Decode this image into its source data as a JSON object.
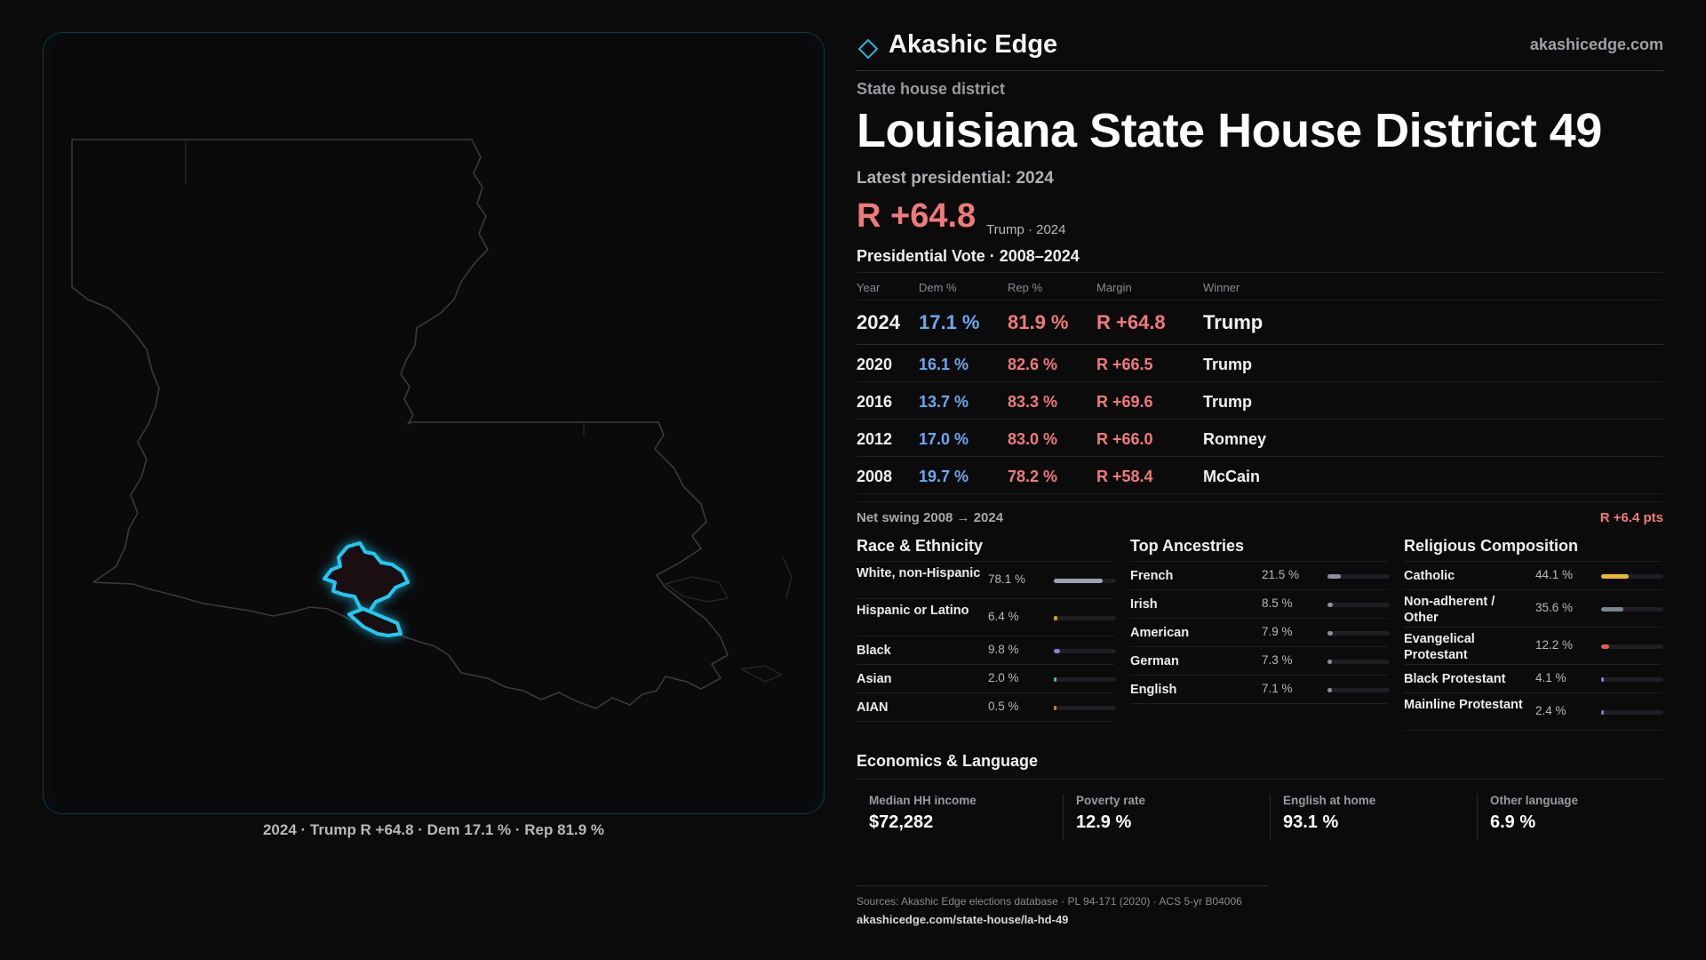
{
  "brand": {
    "name": "Akashic Edge",
    "url": "akashicedge.com"
  },
  "district": {
    "kind": "State house district",
    "title": "Louisiana State House District 49",
    "latest_label": "Latest presidential: 2024",
    "headline_margin": "R +64.8",
    "headline_sub": "Trump · 2024"
  },
  "map": {
    "caption": "2024 · Trump R +64.8 · Dem 17.1 % · Rep 81.9 %"
  },
  "vote": {
    "title": "Presidential Vote · 2008–2024",
    "headers": {
      "year": "Year",
      "dem": "Dem %",
      "rep": "Rep %",
      "margin": "Margin",
      "winner": "Winner"
    },
    "rows": [
      {
        "year": "2024",
        "dem": "17.1 %",
        "rep": "81.9 %",
        "margin": "R +64.8",
        "winner": "Trump"
      },
      {
        "year": "2020",
        "dem": "16.1 %",
        "rep": "82.6 %",
        "margin": "R +66.5",
        "winner": "Trump"
      },
      {
        "year": "2016",
        "dem": "13.7 %",
        "rep": "83.3 %",
        "margin": "R +69.6",
        "winner": "Trump"
      },
      {
        "year": "2012",
        "dem": "17.0 %",
        "rep": "83.0 %",
        "margin": "R +66.0",
        "winner": "Romney"
      },
      {
        "year": "2008",
        "dem": "19.7 %",
        "rep": "78.2 %",
        "margin": "R +58.4",
        "winner": "McCain"
      }
    ],
    "swing_label": "Net swing 2008 → 2024",
    "swing_value": "R +6.4 pts"
  },
  "race": {
    "title": "Race & Ethnicity",
    "items": [
      {
        "label": "White, non-Hispanic",
        "value": "78.1 %",
        "fraction": 0.781,
        "color": "#9aa4b4"
      },
      {
        "label": "Hispanic or Latino",
        "value": "6.4 %",
        "fraction": 0.064,
        "color": "#e0a030"
      },
      {
        "label": "Black",
        "value": "9.8 %",
        "fraction": 0.098,
        "color": "#8a7ae0"
      },
      {
        "label": "Asian",
        "value": "2.0 %",
        "fraction": 0.02,
        "color": "#40c090"
      },
      {
        "label": "AIAN",
        "value": "0.5 %",
        "fraction": 0.005,
        "color": "#c08060"
      }
    ]
  },
  "ancestry": {
    "title": "Top Ancestries",
    "items": [
      {
        "label": "French",
        "value": "21.5 %",
        "fraction": 0.215,
        "color": "#8a8f9a"
      },
      {
        "label": "Irish",
        "value": "8.5 %",
        "fraction": 0.085,
        "color": "#8a8f9a"
      },
      {
        "label": "American",
        "value": "7.9 %",
        "fraction": 0.079,
        "color": "#8a8f9a"
      },
      {
        "label": "German",
        "value": "7.3 %",
        "fraction": 0.073,
        "color": "#8a8f9a"
      },
      {
        "label": "English",
        "value": "7.1 %",
        "fraction": 0.071,
        "color": "#8a8f9a"
      }
    ]
  },
  "religion": {
    "title": "Religious Composition",
    "items": [
      {
        "label": "Catholic",
        "value": "44.1 %",
        "fraction": 0.441,
        "color": "#e8b830"
      },
      {
        "label": "Non-adherent / Other",
        "value": "35.6 %",
        "fraction": 0.356,
        "color": "#7a808c"
      },
      {
        "label": "Evangelical Protestant",
        "value": "12.2 %",
        "fraction": 0.122,
        "color": "#e05a5a"
      },
      {
        "label": "Black Protestant",
        "value": "4.1 %",
        "fraction": 0.041,
        "color": "#8a7ae0"
      },
      {
        "label": "Mainline Protestant",
        "value": "2.4 %",
        "fraction": 0.024,
        "color": "#5a8ae0"
      }
    ]
  },
  "economics": {
    "title": "Economics & Language",
    "cells": [
      {
        "label": "Median HH income",
        "value": "$72,282"
      },
      {
        "label": "Poverty rate",
        "value": "12.9 %"
      },
      {
        "label": "English at home",
        "value": "93.1 %"
      },
      {
        "label": "Other language",
        "value": "6.9 %"
      }
    ]
  },
  "sources": {
    "line": "Sources: Akashic Edge elections database · PL 94-171 (2020) · ACS 5-yr B04006",
    "url": "akashicedge.com/state-house/la-hd-49"
  },
  "colors": {
    "dem": "#6aa8f0",
    "rep": "#f07a7a",
    "highlight": "#22c8f0"
  }
}
